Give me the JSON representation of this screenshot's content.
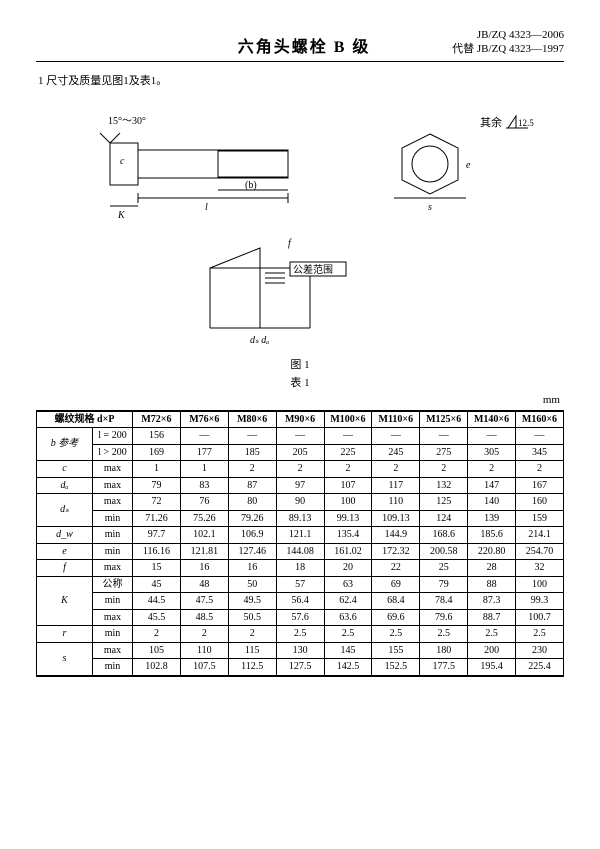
{
  "header": {
    "title": "六角头螺栓  B 级",
    "std_main": "JB/ZQ 4323—2006",
    "std_sub": "代替 JB/ZQ 4323—1997"
  },
  "section1": "1  尺寸及质量见图1及表1。",
  "fig_label": "图 1",
  "table_label": "表 1",
  "unit": "mm",
  "table": {
    "head_param": "螺纹规格 d×P",
    "cols": [
      "M72×6",
      "M76×6",
      "M80×6",
      "M90×6",
      "M100×6",
      "M110×6",
      "M125×6",
      "M140×6",
      "M160×6"
    ],
    "rows": [
      {
        "p": "b 参考",
        "s": "l = 200",
        "v": [
          "156",
          "—",
          "—",
          "—",
          "—",
          "—",
          "—",
          "—",
          "—"
        ]
      },
      {
        "p": "",
        "s": "l > 200",
        "v": [
          "169",
          "177",
          "185",
          "205",
          "225",
          "245",
          "275",
          "305",
          "345"
        ]
      },
      {
        "p": "c",
        "s": "max",
        "v": [
          "1",
          "1",
          "2",
          "2",
          "2",
          "2",
          "2",
          "2",
          "2"
        ]
      },
      {
        "p": "dₐ",
        "s": "max",
        "v": [
          "79",
          "83",
          "87",
          "97",
          "107",
          "117",
          "132",
          "147",
          "167"
        ]
      },
      {
        "p": "dₛ",
        "s": "max",
        "v": [
          "72",
          "76",
          "80",
          "90",
          "100",
          "110",
          "125",
          "140",
          "160"
        ]
      },
      {
        "p": "",
        "s": "min",
        "v": [
          "71.26",
          "75.26",
          "79.26",
          "89.13",
          "99.13",
          "109.13",
          "124",
          "139",
          "159"
        ]
      },
      {
        "p": "d_w",
        "s": "min",
        "v": [
          "97.7",
          "102.1",
          "106.9",
          "121.1",
          "135.4",
          "144.9",
          "168.6",
          "185.6",
          "214.1"
        ]
      },
      {
        "p": "e",
        "s": "min",
        "v": [
          "116.16",
          "121.81",
          "127.46",
          "144.08",
          "161.02",
          "172.32",
          "200.58",
          "220.80",
          "254.70"
        ]
      },
      {
        "p": "f",
        "s": "max",
        "v": [
          "15",
          "16",
          "16",
          "18",
          "20",
          "22",
          "25",
          "28",
          "32"
        ]
      },
      {
        "p": "K",
        "s": "公称",
        "v": [
          "45",
          "48",
          "50",
          "57",
          "63",
          "69",
          "79",
          "88",
          "100"
        ]
      },
      {
        "p": "",
        "s": "min",
        "v": [
          "44.5",
          "47.5",
          "49.5",
          "56.4",
          "62.4",
          "68.4",
          "78.4",
          "87.3",
          "99.3"
        ]
      },
      {
        "p": "",
        "s": "max",
        "v": [
          "45.5",
          "48.5",
          "50.5",
          "57.6",
          "63.6",
          "69.6",
          "79.6",
          "88.7",
          "100.7"
        ]
      },
      {
        "p": "r",
        "s": "min",
        "v": [
          "2",
          "2",
          "2",
          "2.5",
          "2.5",
          "2.5",
          "2.5",
          "2.5",
          "2.5"
        ]
      },
      {
        "p": "s",
        "s": "max",
        "v": [
          "105",
          "110",
          "115",
          "130",
          "145",
          "155",
          "180",
          "200",
          "230"
        ]
      },
      {
        "p": "",
        "s": "min",
        "v": [
          "102.8",
          "107.5",
          "112.5",
          "127.5",
          "142.5",
          "152.5",
          "177.5",
          "195.4",
          "225.4"
        ]
      }
    ]
  },
  "fig_note": "其余",
  "fig_tol": "12.5",
  "fig_angle": "15°～30°",
  "fig_tol_label": "公差范围"
}
